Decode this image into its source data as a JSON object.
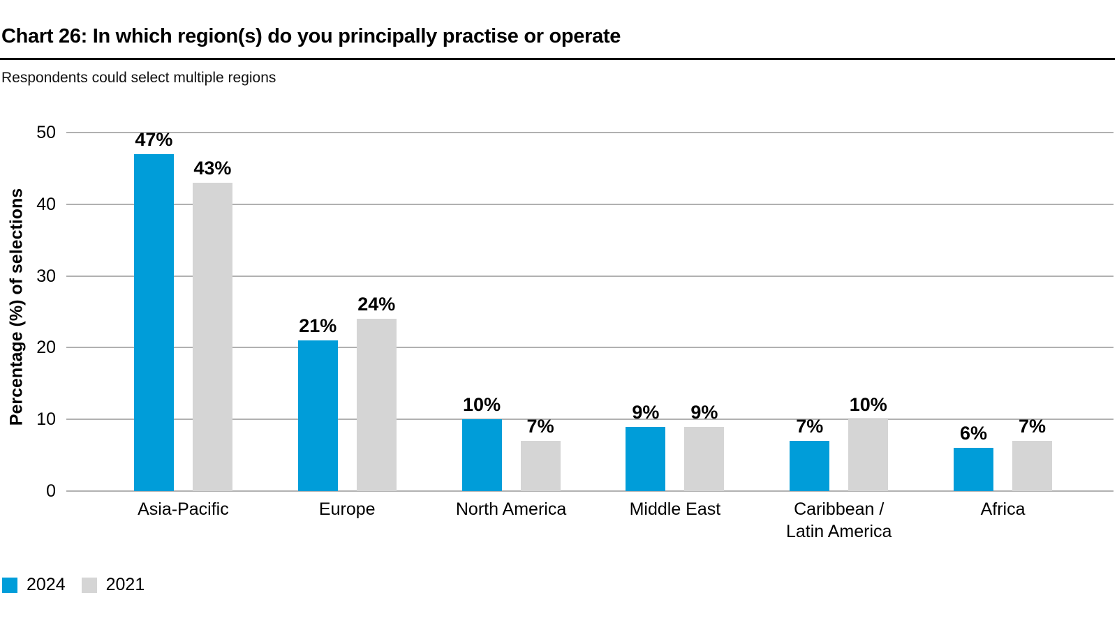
{
  "header": {
    "title": "Chart 26: In which region(s) do you principally practise or operate",
    "subtitle": "Respondents could select multiple regions"
  },
  "chart_data": {
    "type": "bar",
    "title": "Chart 26: In which region(s) do you principally practise or operate",
    "subtitle": "Respondents could select multiple regions",
    "categories": [
      "Asia-Pacific",
      "Europe",
      "North America",
      "Middle East",
      "Caribbean /\nLatin America",
      "Africa"
    ],
    "series": [
      {
        "name": "2024",
        "color": "#009dd9",
        "values": [
          47,
          21,
          10,
          9,
          7,
          6
        ]
      },
      {
        "name": "2021",
        "color": "#d5d5d5",
        "values": [
          43,
          24,
          7,
          9,
          10,
          7
        ]
      }
    ],
    "value_suffix": "%",
    "xlabel": "",
    "ylabel": "Percentage (%) of selections",
    "ylim": [
      0,
      50
    ],
    "yticks": [
      0,
      10,
      20,
      30,
      40,
      50
    ],
    "grid": true,
    "legend_position": "bottom-left"
  },
  "colors": {
    "series_2024": "#009dd9",
    "series_2021": "#d5d5d5",
    "gridline": "#b1b1b1",
    "title_rule": "#000000",
    "text": "#000000",
    "background": "#ffffff"
  }
}
